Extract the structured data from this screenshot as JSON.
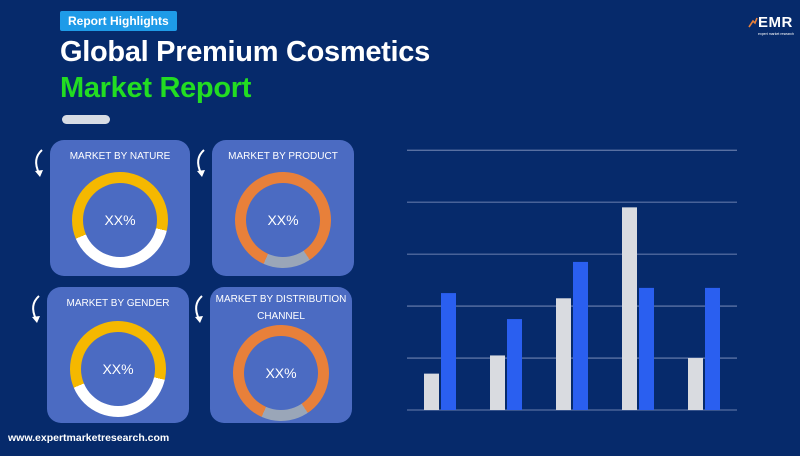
{
  "header": {
    "badge": "Report Highlights",
    "title_line1": "Global Premium Cosmetics",
    "title_line2": "Market Report"
  },
  "logo": {
    "text": "EMR",
    "tagline": "expert market research"
  },
  "footer": {
    "url": "www.expertmarketresearch.com"
  },
  "cards": [
    {
      "title": "MARKET BY NATURE",
      "value": "XX%",
      "share": 0.6,
      "primary_color": "#f5b800",
      "secondary_color": "#ffffff"
    },
    {
      "title": "MARKET BY PRODUCT",
      "value": "XX%",
      "share": 0.84,
      "primary_color": "#e8803a",
      "secondary_color": "#9aa6b8"
    },
    {
      "title": "MARKET BY GENDER",
      "value": "XX%",
      "share": 0.6,
      "primary_color": "#f5b800",
      "secondary_color": "#ffffff"
    },
    {
      "title_line1": "MARKET BY DISTRIBUTION",
      "title_line2": "CHANNEL",
      "value": "XX%",
      "share": 0.84,
      "primary_color": "#e8803a",
      "secondary_color": "#9aa6b8"
    }
  ],
  "chart_data": {
    "type": "bar",
    "categories": [
      "",
      "",
      "",
      "",
      ""
    ],
    "series": [
      {
        "values": [
          1.4,
          2.1,
          4.3,
          7.8,
          2.0
        ],
        "color": "#d9dbe0"
      },
      {
        "values": [
          4.5,
          3.5,
          5.7,
          4.7,
          4.7
        ],
        "color": "#2a5ff0"
      }
    ],
    "ylim": [
      0,
      10.2
    ],
    "grid": true
  }
}
